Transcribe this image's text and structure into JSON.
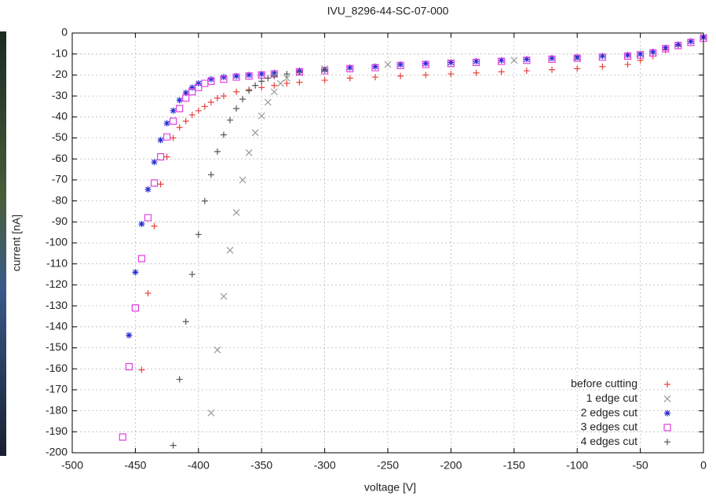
{
  "chart_data": {
    "type": "scatter",
    "title": "IVU_8296-44-SC-07-000",
    "x_label": "voltage [V]",
    "y_label": "current [nA]",
    "xlim": [
      -500,
      0
    ],
    "ylim": [
      -200,
      0
    ],
    "xticks": [
      -500,
      -450,
      -400,
      -350,
      -300,
      -250,
      -200,
      -150,
      -100,
      -50,
      0
    ],
    "yticks": [
      0,
      -10,
      -20,
      -30,
      -40,
      -50,
      -60,
      -70,
      -80,
      -90,
      -100,
      -110,
      -120,
      -130,
      -140,
      -150,
      -160,
      -170,
      -180,
      -190,
      -200
    ],
    "grid": true,
    "legend": "lower right",
    "series": [
      {
        "name": "before cutting",
        "color": "#e8413c",
        "marker": "plus",
        "x": [
          -445,
          -440,
          -435,
          -430,
          -425,
          -420,
          -415,
          -410,
          -405,
          -400,
          -395,
          -390,
          -385,
          -380,
          -370,
          -360,
          -350,
          -340,
          -330,
          -320,
          -300,
          -280,
          -260,
          -240,
          -220,
          -200,
          -180,
          -160,
          -140,
          -120,
          -100,
          -80,
          -60,
          -50,
          -40,
          -30,
          -20,
          -10,
          0
        ],
        "values": [
          -160.5,
          -124,
          -92,
          -72,
          -59,
          -50,
          -45,
          -42,
          -39,
          -37,
          -35,
          -33,
          -31,
          -30,
          -28,
          -27,
          -26,
          -25,
          -24,
          -23.5,
          -22.5,
          -21.5,
          -21,
          -20.5,
          -20,
          -19.5,
          -19,
          -18.5,
          -18,
          -17.5,
          -17,
          -16,
          -15,
          -13,
          -11,
          -8,
          -6,
          -4,
          -2
        ]
      },
      {
        "name": "1 edge cut",
        "color": "#9a9a9a",
        "marker": "cross",
        "x": [
          -390,
          -385,
          -380,
          -375,
          -370,
          -365,
          -360,
          -355,
          -350,
          -345,
          -340,
          -335,
          -330,
          -320,
          -300,
          -250,
          -200,
          -150,
          -100,
          -50,
          0
        ],
        "values": [
          -181,
          -151,
          -125.5,
          -103.5,
          -85.5,
          -70,
          -57,
          -47.5,
          -39.5,
          -33,
          -28,
          -24,
          -21.5,
          -19,
          -17,
          -15,
          -14,
          -13,
          -12,
          -10,
          -2
        ]
      },
      {
        "name": "2 edges cut",
        "color": "#2b2bd6",
        "marker": "star",
        "x": [
          -455,
          -450,
          -445,
          -440,
          -435,
          -430,
          -425,
          -420,
          -415,
          -410,
          -405,
          -400,
          -390,
          -380,
          -370,
          -360,
          -350,
          -340,
          -320,
          -300,
          -280,
          -260,
          -240,
          -220,
          -200,
          -180,
          -160,
          -140,
          -120,
          -100,
          -80,
          -60,
          -50,
          -40,
          -30,
          -20,
          -10,
          0
        ],
        "values": [
          -144,
          -114,
          -91,
          -74.5,
          -61.5,
          -51,
          -43,
          -37,
          -32,
          -28.5,
          -26,
          -24,
          -22,
          -21,
          -20.5,
          -20,
          -19.5,
          -19,
          -18,
          -17.5,
          -16.5,
          -16,
          -15,
          -14.5,
          -14,
          -13.5,
          -13,
          -12.5,
          -12,
          -11.5,
          -11,
          -10.5,
          -10,
          -9,
          -7,
          -5.5,
          -4,
          -2
        ]
      },
      {
        "name": "3 edges cut",
        "color": "#e040e0",
        "marker": "square",
        "x": [
          -460,
          -455,
          -450,
          -445,
          -440,
          -435,
          -430,
          -425,
          -420,
          -415,
          -410,
          -405,
          -400,
          -395,
          -390,
          -380,
          -370,
          -360,
          -350,
          -340,
          -320,
          -300,
          -280,
          -260,
          -240,
          -220,
          -200,
          -180,
          -160,
          -140,
          -120,
          -100,
          -80,
          -60,
          -50,
          -40,
          -30,
          -20,
          -10,
          0
        ],
        "values": [
          -192.5,
          -159,
          -131,
          -107.5,
          -88,
          -71.5,
          -59,
          -49.5,
          -42,
          -36,
          -31,
          -28,
          -26,
          -24,
          -23,
          -22,
          -21,
          -20.5,
          -20,
          -19.5,
          -18.5,
          -18,
          -17,
          -16.5,
          -15.5,
          -15,
          -14.5,
          -14,
          -13.5,
          -13,
          -12.5,
          -12,
          -11.5,
          -11,
          -10.5,
          -9.5,
          -7.5,
          -6,
          -4.5,
          -2.5
        ]
      },
      {
        "name": "4 edges cut",
        "color": "#555555",
        "marker": "plus",
        "x": [
          -420,
          -415,
          -410,
          -405,
          -400,
          -395,
          -390,
          -385,
          -380,
          -375,
          -370,
          -365,
          -360,
          -355,
          -350,
          -345,
          -340,
          -330,
          -320,
          -300
        ],
        "values": [
          -196.5,
          -165,
          -137.5,
          -115,
          -96,
          -80,
          -67.5,
          -56.5,
          -48.5,
          -41.5,
          -36,
          -31.5,
          -27.5,
          -25,
          -23,
          -21.5,
          -20.5,
          -19.5,
          -18.5,
          -17.5
        ]
      }
    ]
  }
}
